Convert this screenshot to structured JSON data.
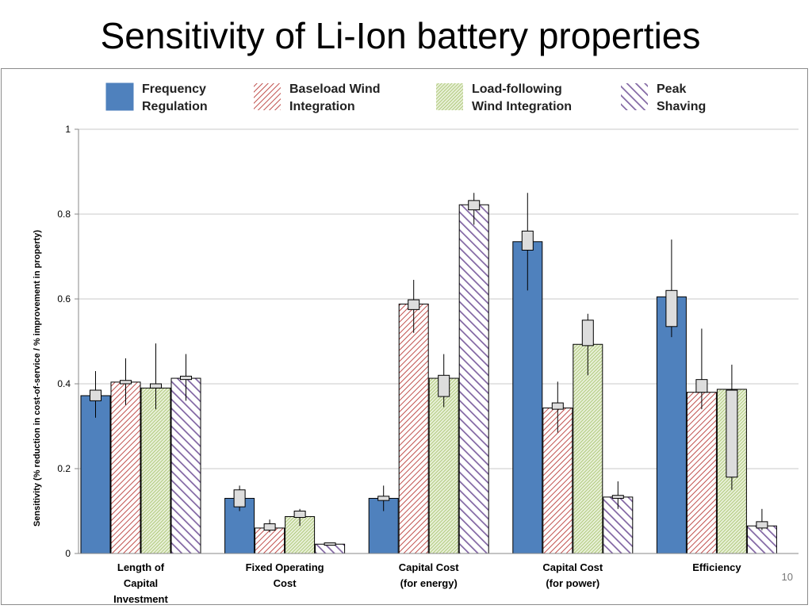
{
  "slide": {
    "title": "Sensitivity of Li-Ion battery properties",
    "page_number": "10"
  },
  "chart_data": {
    "type": "bar",
    "title": "",
    "ylabel": "Sensitivity (% reduction in cost-of-service / % improvement in property)",
    "ylim": [
      0,
      1
    ],
    "yticks": [
      "0",
      "0.2",
      "0.4",
      "0.6",
      "0.8",
      "1"
    ],
    "grid": true,
    "legend_position": "top",
    "categories": [
      [
        "Length of",
        "Capital",
        "Investment"
      ],
      [
        "Fixed Operating",
        "Cost"
      ],
      [
        "Capital Cost",
        "(for energy)"
      ],
      [
        "Capital Cost",
        "(for power)"
      ],
      [
        "Efficiency"
      ]
    ],
    "series": [
      {
        "name": [
          "Frequency",
          "Regulation"
        ],
        "color": "#4f81bd",
        "pattern": "solid",
        "values": [
          0.372,
          0.13,
          0.13,
          0.735,
          0.605
        ],
        "box": [
          [
            0.36,
            0.385
          ],
          [
            0.11,
            0.15
          ],
          [
            0.125,
            0.135
          ],
          [
            0.715,
            0.76
          ],
          [
            0.535,
            0.62
          ]
        ],
        "whisker": [
          [
            0.32,
            0.43
          ],
          [
            0.1,
            0.16
          ],
          [
            0.1,
            0.16
          ],
          [
            0.62,
            0.85
          ],
          [
            0.51,
            0.74
          ]
        ]
      },
      {
        "name": [
          "Baseload Wind",
          "Integration"
        ],
        "color": "#c0504d",
        "pattern": "diagonal-hatch",
        "values": [
          0.404,
          0.06,
          0.588,
          0.343,
          0.38
        ],
        "box": [
          [
            0.4,
            0.408
          ],
          [
            0.055,
            0.07
          ],
          [
            0.575,
            0.598
          ],
          [
            0.34,
            0.355
          ],
          [
            0.38,
            0.41
          ]
        ],
        "whisker": [
          [
            0.35,
            0.46
          ],
          [
            0.05,
            0.08
          ],
          [
            0.52,
            0.645
          ],
          [
            0.285,
            0.405
          ],
          [
            0.34,
            0.53
          ]
        ]
      },
      {
        "name": [
          "Load-following",
          "Wind Integration"
        ],
        "color": "#9bbb59",
        "pattern": "fine-hatch",
        "values": [
          0.39,
          0.087,
          0.413,
          0.493,
          0.387
        ],
        "box": [
          [
            0.39,
            0.4
          ],
          [
            0.085,
            0.1
          ],
          [
            0.37,
            0.42
          ],
          [
            0.49,
            0.55
          ],
          [
            0.18,
            0.385
          ]
        ],
        "whisker": [
          [
            0.34,
            0.495
          ],
          [
            0.065,
            0.105
          ],
          [
            0.345,
            0.47
          ],
          [
            0.42,
            0.565
          ],
          [
            0.15,
            0.445
          ]
        ]
      },
      {
        "name": [
          "Peak",
          "Shaving"
        ],
        "color": "#8064a2",
        "pattern": "wide-hatch",
        "values": [
          0.413,
          0.022,
          0.822,
          0.133,
          0.065
        ],
        "box": [
          [
            0.41,
            0.418
          ],
          [
            0.02,
            0.025
          ],
          [
            0.81,
            0.832
          ],
          [
            0.13,
            0.137
          ],
          [
            0.06,
            0.075
          ]
        ],
        "whisker": [
          [
            0.36,
            0.47
          ],
          [
            0.02,
            0.025
          ],
          [
            0.775,
            0.85
          ],
          [
            0.105,
            0.17
          ],
          [
            0.055,
            0.105
          ]
        ]
      }
    ]
  }
}
